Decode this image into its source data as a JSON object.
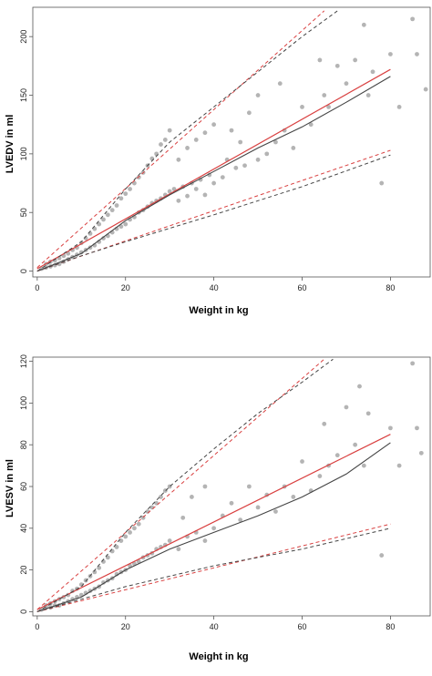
{
  "chart_data": [
    {
      "type": "scatter",
      "title": "",
      "xlabel": "Weight in kg",
      "ylabel": "LVEDV in ml",
      "xlim": [
        -1,
        89
      ],
      "ylim": [
        -5,
        225
      ],
      "xticks": [
        0,
        20,
        40,
        60,
        80
      ],
      "yticks": [
        0,
        50,
        100,
        150,
        200
      ],
      "grid": false,
      "legend": "none",
      "colors": {
        "points": "#b4b4b4",
        "red": "#d94040",
        "dark": "#444444"
      },
      "points": [
        [
          1,
          2
        ],
        [
          2,
          3
        ],
        [
          2,
          6
        ],
        [
          3,
          4
        ],
        [
          3,
          8
        ],
        [
          4,
          5
        ],
        [
          4,
          9
        ],
        [
          5,
          6
        ],
        [
          5,
          11
        ],
        [
          6,
          8
        ],
        [
          6,
          13
        ],
        [
          7,
          10
        ],
        [
          7,
          15
        ],
        [
          8,
          12
        ],
        [
          8,
          18
        ],
        [
          9,
          14
        ],
        [
          9,
          20
        ],
        [
          10,
          16
        ],
        [
          10,
          24
        ],
        [
          11,
          18
        ],
        [
          11,
          28
        ],
        [
          12,
          20
        ],
        [
          12,
          32
        ],
        [
          13,
          22
        ],
        [
          13,
          36
        ],
        [
          14,
          25
        ],
        [
          14,
          40
        ],
        [
          15,
          28
        ],
        [
          15,
          44
        ],
        [
          16,
          30
        ],
        [
          16,
          48
        ],
        [
          17,
          33
        ],
        [
          17,
          52
        ],
        [
          18,
          36
        ],
        [
          18,
          56
        ],
        [
          19,
          38
        ],
        [
          19,
          62
        ],
        [
          20,
          40
        ],
        [
          20,
          66
        ],
        [
          21,
          44
        ],
        [
          21,
          70
        ],
        [
          22,
          46
        ],
        [
          22,
          75
        ],
        [
          23,
          50
        ],
        [
          23,
          80
        ],
        [
          24,
          52
        ],
        [
          24,
          84
        ],
        [
          25,
          55
        ],
        [
          25,
          90
        ],
        [
          26,
          58
        ],
        [
          26,
          96
        ],
        [
          27,
          60
        ],
        [
          27,
          100
        ],
        [
          28,
          62
        ],
        [
          28,
          108
        ],
        [
          29,
          65
        ],
        [
          29,
          112
        ],
        [
          30,
          68
        ],
        [
          30,
          120
        ],
        [
          31,
          70
        ],
        [
          32,
          60
        ],
        [
          32,
          95
        ],
        [
          33,
          72
        ],
        [
          34,
          64
        ],
        [
          34,
          105
        ],
        [
          35,
          75
        ],
        [
          36,
          70
        ],
        [
          36,
          112
        ],
        [
          37,
          78
        ],
        [
          38,
          65
        ],
        [
          38,
          118
        ],
        [
          39,
          82
        ],
        [
          40,
          75
        ],
        [
          40,
          125
        ],
        [
          42,
          80
        ],
        [
          43,
          95
        ],
        [
          44,
          120
        ],
        [
          45,
          88
        ],
        [
          46,
          110
        ],
        [
          47,
          90
        ],
        [
          48,
          135
        ],
        [
          50,
          95
        ],
        [
          50,
          150
        ],
        [
          52,
          100
        ],
        [
          54,
          110
        ],
        [
          55,
          160
        ],
        [
          56,
          120
        ],
        [
          58,
          105
        ],
        [
          60,
          140
        ],
        [
          62,
          125
        ],
        [
          64,
          180
        ],
        [
          65,
          150
        ],
        [
          66,
          140
        ],
        [
          68,
          175
        ],
        [
          70,
          160
        ],
        [
          72,
          180
        ],
        [
          74,
          210
        ],
        [
          75,
          150
        ],
        [
          76,
          170
        ],
        [
          78,
          75
        ],
        [
          80,
          185
        ],
        [
          82,
          140
        ],
        [
          85,
          215
        ],
        [
          86,
          185
        ],
        [
          88,
          155
        ]
      ],
      "series": [
        {
          "values": [
            [
              0,
              2
            ],
            [
              80,
              172
            ]
          ]
        },
        {
          "values": [
            [
              0,
              0
            ],
            [
              10,
              15
            ],
            [
              20,
              43
            ],
            [
              30,
              65
            ],
            [
              40,
              85
            ],
            [
              50,
              105
            ],
            [
              60,
              123
            ],
            [
              70,
              144
            ],
            [
              80,
              166
            ]
          ]
        },
        {
          "values": [
            [
              0,
              3
            ],
            [
              65,
              222
            ]
          ]
        },
        {
          "values": [
            [
              0,
              0
            ],
            [
              10,
              25
            ],
            [
              20,
              70
            ],
            [
              30,
              110
            ],
            [
              40,
              140
            ],
            [
              50,
              170
            ],
            [
              60,
              200
            ],
            [
              68,
              222
            ]
          ]
        },
        {
          "values": [
            [
              0,
              0
            ],
            [
              80,
              103
            ]
          ]
        },
        {
          "values": [
            [
              0,
              0
            ],
            [
              10,
              13
            ],
            [
              20,
              25
            ],
            [
              40,
              48
            ],
            [
              60,
              72
            ],
            [
              80,
              99
            ]
          ]
        }
      ]
    },
    {
      "type": "scatter",
      "title": "",
      "xlabel": "Weight in kg",
      "ylabel": "LVESV in ml",
      "xlim": [
        -1,
        89
      ],
      "ylim": [
        -2,
        122
      ],
      "xticks": [
        0,
        20,
        40,
        60,
        80
      ],
      "yticks": [
        0,
        20,
        40,
        60,
        80,
        100,
        120
      ],
      "grid": false,
      "legend": "none",
      "colors": {
        "points": "#b4b4b4",
        "red": "#d94040",
        "dark": "#444444"
      },
      "points": [
        [
          1,
          1
        ],
        [
          2,
          2
        ],
        [
          2,
          3
        ],
        [
          3,
          2
        ],
        [
          3,
          4
        ],
        [
          4,
          3
        ],
        [
          4,
          5
        ],
        [
          5,
          3
        ],
        [
          5,
          6
        ],
        [
          6,
          4
        ],
        [
          6,
          7
        ],
        [
          7,
          5
        ],
        [
          7,
          8
        ],
        [
          8,
          6
        ],
        [
          8,
          10
        ],
        [
          9,
          7
        ],
        [
          9,
          11
        ],
        [
          10,
          8
        ],
        [
          10,
          13
        ],
        [
          11,
          9
        ],
        [
          11,
          15
        ],
        [
          12,
          10
        ],
        [
          12,
          17
        ],
        [
          13,
          11
        ],
        [
          13,
          19
        ],
        [
          14,
          12
        ],
        [
          14,
          21
        ],
        [
          15,
          14
        ],
        [
          15,
          24
        ],
        [
          16,
          15
        ],
        [
          16,
          26
        ],
        [
          17,
          16
        ],
        [
          17,
          29
        ],
        [
          18,
          18
        ],
        [
          18,
          31
        ],
        [
          19,
          19
        ],
        [
          19,
          34
        ],
        [
          20,
          20
        ],
        [
          20,
          36
        ],
        [
          21,
          22
        ],
        [
          21,
          38
        ],
        [
          22,
          23
        ],
        [
          22,
          40
        ],
        [
          23,
          24
        ],
        [
          23,
          42
        ],
        [
          24,
          26
        ],
        [
          24,
          45
        ],
        [
          25,
          27
        ],
        [
          25,
          48
        ],
        [
          26,
          28
        ],
        [
          26,
          50
        ],
        [
          27,
          30
        ],
        [
          27,
          52
        ],
        [
          28,
          31
        ],
        [
          28,
          55
        ],
        [
          29,
          32
        ],
        [
          29,
          58
        ],
        [
          30,
          34
        ],
        [
          30,
          60
        ],
        [
          32,
          30
        ],
        [
          33,
          45
        ],
        [
          34,
          36
        ],
        [
          35,
          55
        ],
        [
          36,
          38
        ],
        [
          38,
          34
        ],
        [
          38,
          60
        ],
        [
          40,
          40
        ],
        [
          42,
          46
        ],
        [
          44,
          52
        ],
        [
          46,
          44
        ],
        [
          48,
          60
        ],
        [
          50,
          50
        ],
        [
          52,
          56
        ],
        [
          54,
          48
        ],
        [
          56,
          60
        ],
        [
          58,
          55
        ],
        [
          60,
          72
        ],
        [
          62,
          58
        ],
        [
          64,
          65
        ],
        [
          65,
          90
        ],
        [
          66,
          70
        ],
        [
          68,
          75
        ],
        [
          70,
          98
        ],
        [
          72,
          80
        ],
        [
          73,
          108
        ],
        [
          74,
          70
        ],
        [
          75,
          95
        ],
        [
          78,
          27
        ],
        [
          80,
          88
        ],
        [
          82,
          70
        ],
        [
          85,
          119
        ],
        [
          86,
          88
        ],
        [
          87,
          76
        ]
      ],
      "series": [
        {
          "values": [
            [
              0,
              1
            ],
            [
              80,
              85
            ]
          ]
        },
        {
          "values": [
            [
              0,
              0
            ],
            [
              10,
              7
            ],
            [
              20,
              20
            ],
            [
              30,
              30
            ],
            [
              40,
              38
            ],
            [
              50,
              46
            ],
            [
              60,
              55
            ],
            [
              70,
              66
            ],
            [
              80,
              81
            ]
          ]
        },
        {
          "values": [
            [
              0,
              1
            ],
            [
              65,
              121
            ]
          ]
        },
        {
          "values": [
            [
              0,
              0
            ],
            [
              10,
              12
            ],
            [
              20,
              38
            ],
            [
              30,
              60
            ],
            [
              40,
              78
            ],
            [
              50,
              95
            ],
            [
              60,
              110
            ],
            [
              67,
              121
            ]
          ]
        },
        {
          "values": [
            [
              0,
              0
            ],
            [
              80,
              42
            ]
          ]
        },
        {
          "values": [
            [
              0,
              0
            ],
            [
              10,
              6
            ],
            [
              20,
              12
            ],
            [
              40,
              22
            ],
            [
              60,
              30
            ],
            [
              80,
              40
            ]
          ]
        }
      ]
    }
  ]
}
